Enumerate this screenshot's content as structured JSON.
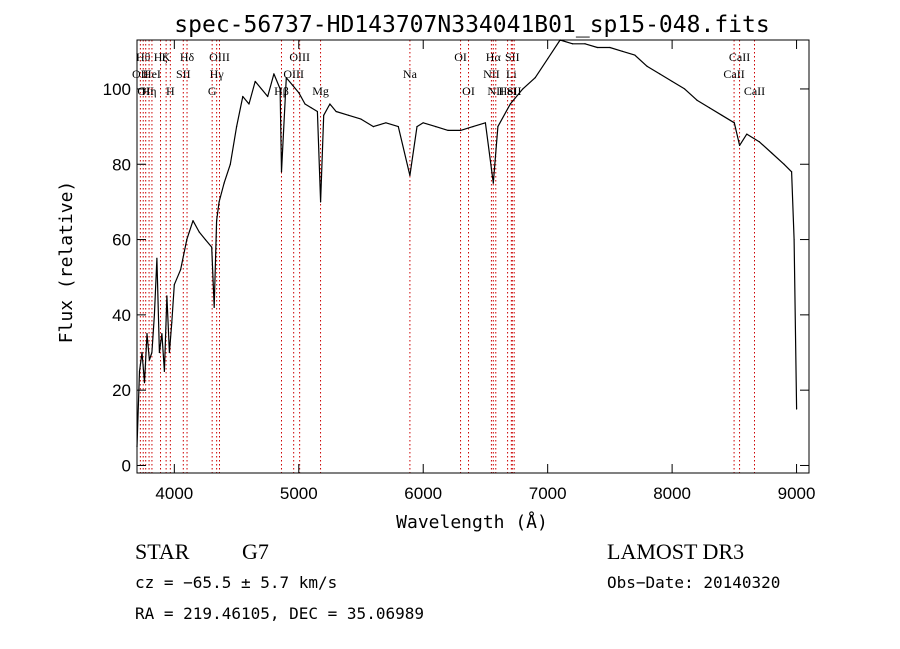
{
  "chart_data": {
    "type": "line",
    "title": "spec-56737-HD143707N334041B01_sp15-048.fits",
    "xlabel": "Wavelength (Å)",
    "ylabel": "Flux (relative)",
    "xlim": [
      3700,
      9100
    ],
    "ylim": [
      -2,
      113
    ],
    "x_ticks": [
      4000,
      5000,
      6000,
      7000,
      8000,
      9000
    ],
    "y_ticks": [
      0,
      20,
      40,
      60,
      80,
      100
    ],
    "series": [
      {
        "name": "flux",
        "x": [
          3700,
          3720,
          3740,
          3760,
          3780,
          3800,
          3820,
          3840,
          3860,
          3880,
          3900,
          3920,
          3940,
          3960,
          3980,
          4000,
          4050,
          4100,
          4150,
          4200,
          4250,
          4300,
          4320,
          4340,
          4360,
          4400,
          4450,
          4500,
          4550,
          4600,
          4650,
          4700,
          4750,
          4800,
          4850,
          4861,
          4900,
          4950,
          5000,
          5050,
          5100,
          5150,
          5175,
          5200,
          5250,
          5300,
          5400,
          5500,
          5600,
          5700,
          5800,
          5893,
          5950,
          6000,
          6100,
          6200,
          6300,
          6400,
          6500,
          6563,
          6600,
          6700,
          6800,
          6900,
          7000,
          7100,
          7200,
          7300,
          7400,
          7500,
          7600,
          7700,
          7800,
          7900,
          8000,
          8100,
          8200,
          8300,
          8400,
          8500,
          8542,
          8600,
          8700,
          8800,
          8900,
          8960,
          8980,
          9000
        ],
        "y": [
          5,
          25,
          30,
          22,
          35,
          28,
          30,
          40,
          55,
          30,
          35,
          25,
          45,
          30,
          38,
          48,
          52,
          60,
          65,
          62,
          60,
          58,
          42,
          65,
          70,
          75,
          80,
          90,
          98,
          96,
          102,
          100,
          98,
          104,
          100,
          78,
          103,
          101,
          99,
          96,
          95,
          94,
          70,
          93,
          96,
          94,
          93,
          92,
          90,
          91,
          90,
          77,
          90,
          91,
          90,
          89,
          89,
          90,
          91,
          75,
          90,
          96,
          100,
          103,
          108,
          113,
          112,
          112,
          111,
          111,
          110,
          109,
          106,
          104,
          102,
          100,
          97,
          95,
          93,
          91,
          85,
          88,
          86,
          83,
          80,
          78,
          60,
          15
        ]
      }
    ],
    "line_markers": [
      {
        "wavelength": 3750,
        "label": "Hθ",
        "row": 1
      },
      {
        "wavelength": 3727,
        "label": "OII",
        "row": 2
      },
      {
        "wavelength": 3770,
        "label": "OII",
        "row": 3
      },
      {
        "wavelength": 3797,
        "label": "Hη",
        "row": 3
      },
      {
        "wavelength": 3820,
        "label": "HeI",
        "row": 2
      },
      {
        "wavelength": 3889,
        "label": "Hζ",
        "row": 1
      },
      {
        "wavelength": 3934,
        "label": "K",
        "row": 1
      },
      {
        "wavelength": 3968,
        "label": "H",
        "row": 3
      },
      {
        "wavelength": 4072,
        "label": "SII",
        "row": 2
      },
      {
        "wavelength": 4102,
        "label": "Hδ",
        "row": 1
      },
      {
        "wavelength": 4340,
        "label": "Hγ",
        "row": 2
      },
      {
        "wavelength": 4363,
        "label": "OIII",
        "row": 1
      },
      {
        "wavelength": 4304,
        "label": "G",
        "row": 3
      },
      {
        "wavelength": 4861,
        "label": "Hβ",
        "row": 3
      },
      {
        "wavelength": 4959,
        "label": "OIII",
        "row": 2
      },
      {
        "wavelength": 5007,
        "label": "OIII",
        "row": 1
      },
      {
        "wavelength": 5175,
        "label": "Mg",
        "row": 3
      },
      {
        "wavelength": 5893,
        "label": "Na",
        "row": 2
      },
      {
        "wavelength": 6300,
        "label": "OI",
        "row": 1
      },
      {
        "wavelength": 6364,
        "label": "OI",
        "row": 3
      },
      {
        "wavelength": 6548,
        "label": "NII",
        "row": 2
      },
      {
        "wavelength": 6563,
        "label": "Hα",
        "row": 1
      },
      {
        "wavelength": 6583,
        "label": "NII",
        "row": 3
      },
      {
        "wavelength": 6678,
        "label": "HeI",
        "row": 3
      },
      {
        "wavelength": 6708,
        "label": "Li",
        "row": 2
      },
      {
        "wavelength": 6716,
        "label": "SII",
        "row": 1
      },
      {
        "wavelength": 6731,
        "label": "SII",
        "row": 3
      },
      {
        "wavelength": 8498,
        "label": "CaII",
        "row": 2
      },
      {
        "wavelength": 8542,
        "label": "CaII",
        "row": 1
      },
      {
        "wavelength": 8662,
        "label": "CaII",
        "row": 3
      }
    ],
    "colors": {
      "spectrum": "#000000",
      "markers": "#cc0000",
      "axes": "#000000"
    }
  },
  "info": {
    "object_class": "STAR",
    "subclass": "G7",
    "survey": "LAMOST DR3",
    "cz": "cz = −65.5 ± 5.7 km/s",
    "obs_date": "Obs−Date: 20140320",
    "coords": "RA = 219.46105, DEC =  35.06989"
  }
}
